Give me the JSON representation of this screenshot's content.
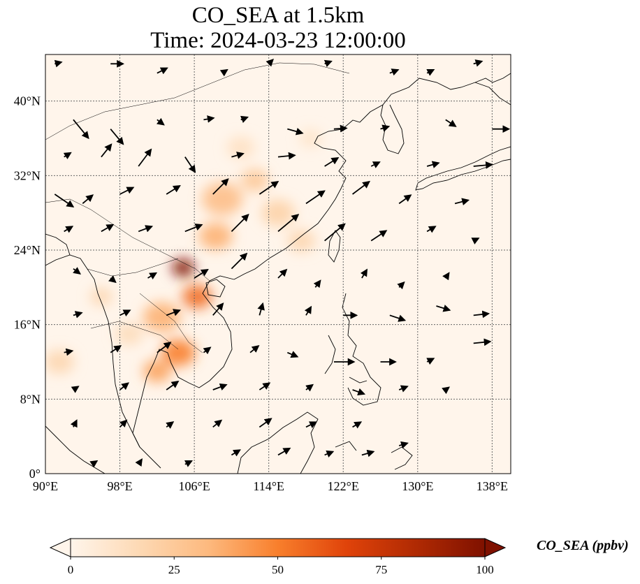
{
  "title": {
    "line1": "CO_SEA at 1.5km",
    "line2": "Time: 2024-03-23 12:00:00"
  },
  "map": {
    "projection": "PlateCarree",
    "lon_range": [
      90,
      140
    ],
    "lat_range": [
      0,
      45
    ],
    "lon_ticks": [
      {
        "value": 90,
        "label": "90°E"
      },
      {
        "value": 98,
        "label": "98°E"
      },
      {
        "value": 106,
        "label": "106°E"
      },
      {
        "value": 114,
        "label": "114°E"
      },
      {
        "value": 122,
        "label": "122°E"
      },
      {
        "value": 130,
        "label": "130°E"
      },
      {
        "value": 138,
        "label": "138°E"
      }
    ],
    "lat_ticks": [
      {
        "value": 0,
        "label": "0°"
      },
      {
        "value": 8,
        "label": "8°N"
      },
      {
        "value": 16,
        "label": "16°N"
      },
      {
        "value": 24,
        "label": "24°N"
      },
      {
        "value": 32,
        "label": "32°N"
      },
      {
        "value": 40,
        "label": "40°N"
      }
    ],
    "gridlines": "dotted",
    "background_color": "#fff5eb",
    "coastline_color": "#000000",
    "plumes": [
      {
        "lon": 104.8,
        "lat": 22.1,
        "r": 1.2,
        "level": 100
      },
      {
        "lon": 106.3,
        "lat": 19.0,
        "r": 1.6,
        "level": 55
      },
      {
        "lon": 104.3,
        "lat": 13.0,
        "r": 1.8,
        "level": 50
      },
      {
        "lon": 102.0,
        "lat": 11.0,
        "r": 1.5,
        "level": 40
      },
      {
        "lon": 102.5,
        "lat": 16.8,
        "r": 2.0,
        "level": 35
      },
      {
        "lon": 108.3,
        "lat": 25.5,
        "r": 1.8,
        "level": 35
      },
      {
        "lon": 109.0,
        "lat": 29.5,
        "r": 2.2,
        "level": 30
      },
      {
        "lon": 112.5,
        "lat": 31.5,
        "r": 1.5,
        "level": 25
      },
      {
        "lon": 115.0,
        "lat": 28.0,
        "r": 1.8,
        "level": 20
      },
      {
        "lon": 117.5,
        "lat": 25.0,
        "r": 1.5,
        "level": 18
      },
      {
        "lon": 96.0,
        "lat": 19.0,
        "r": 1.2,
        "level": 18
      },
      {
        "lon": 91.5,
        "lat": 12.0,
        "r": 1.6,
        "level": 18
      },
      {
        "lon": 99.0,
        "lat": 15.0,
        "r": 1.5,
        "level": 15
      },
      {
        "lon": 111.0,
        "lat": 35.0,
        "r": 1.5,
        "level": 12
      },
      {
        "lon": 118.5,
        "lat": 36.0,
        "r": 1.2,
        "level": 10
      }
    ],
    "wind_vectors": [
      [
        91,
        44,
        0.8,
        0.2
      ],
      [
        97,
        44,
        1.5,
        0
      ],
      [
        102,
        43,
        1.2,
        0.6
      ],
      [
        109,
        43,
        0.6,
        0.4
      ],
      [
        114,
        44,
        0.5,
        0.5
      ],
      [
        120,
        44,
        0.8,
        0.3
      ],
      [
        127,
        43,
        1.0,
        0.4
      ],
      [
        131,
        43,
        0.8,
        0.4
      ],
      [
        136,
        44,
        1.0,
        0.3
      ],
      [
        93,
        38,
        1.8,
        -2.2
      ],
      [
        97,
        37,
        1.5,
        -1.8
      ],
      [
        102,
        38,
        0.8,
        -0.6
      ],
      [
        107,
        38,
        1.2,
        0.2
      ],
      [
        111,
        38,
        0.8,
        0.3
      ],
      [
        116,
        37,
        1.8,
        -0.5
      ],
      [
        121,
        37,
        1.5,
        0.1
      ],
      [
        126,
        37,
        1.0,
        0.3
      ],
      [
        133,
        38,
        1.2,
        -0.8
      ],
      [
        138,
        37,
        2.0,
        0
      ],
      [
        92,
        34,
        0.8,
        0.5
      ],
      [
        96,
        34,
        1.2,
        1.5
      ],
      [
        100,
        33,
        1.5,
        2.0
      ],
      [
        105,
        34,
        1.2,
        -1.8
      ],
      [
        110,
        34,
        1.4,
        0.4
      ],
      [
        115,
        34,
        2.0,
        0.2
      ],
      [
        120,
        33,
        1.6,
        1.0
      ],
      [
        125,
        33,
        1.0,
        0.5
      ],
      [
        131,
        33,
        1.4,
        0.4
      ],
      [
        136,
        33,
        2.2,
        0.2
      ],
      [
        91,
        30,
        2.2,
        -1.5
      ],
      [
        94,
        29,
        1.2,
        1.0
      ],
      [
        98,
        30,
        1.6,
        0.8
      ],
      [
        103,
        30,
        1.6,
        1.0
      ],
      [
        108,
        30,
        1.8,
        1.8
      ],
      [
        113,
        30,
        2.2,
        1.5
      ],
      [
        118,
        29,
        2.2,
        1.5
      ],
      [
        123,
        30,
        2.0,
        1.5
      ],
      [
        128,
        29,
        1.4,
        1.0
      ],
      [
        134,
        29,
        1.6,
        0.4
      ],
      [
        92,
        26,
        1.0,
        0.6
      ],
      [
        96,
        26,
        1.4,
        0.8
      ],
      [
        100,
        26,
        1.6,
        0.6
      ],
      [
        105,
        26,
        2.0,
        0.8
      ],
      [
        110,
        26,
        2.0,
        2.0
      ],
      [
        115,
        26,
        2.4,
        2.0
      ],
      [
        120,
        25,
        2.4,
        2.0
      ],
      [
        125,
        25,
        1.8,
        1.2
      ],
      [
        131,
        26,
        1.0,
        0.6
      ],
      [
        136,
        25,
        0.6,
        0.3
      ],
      [
        93,
        22,
        0.8,
        -0.6
      ],
      [
        97,
        21,
        0.6,
        -0.5
      ],
      [
        101,
        21,
        1.0,
        0.6
      ],
      [
        106,
        21,
        1.6,
        1.0
      ],
      [
        110,
        22,
        1.8,
        1.8
      ],
      [
        115,
        21,
        1.0,
        1.0
      ],
      [
        119,
        20,
        0.6,
        0.8
      ],
      [
        124,
        21,
        0.6,
        1.0
      ],
      [
        128,
        20,
        0.6,
        0.6
      ],
      [
        133,
        21,
        0.4,
        0.6
      ],
      [
        93,
        17,
        1.0,
        0.3
      ],
      [
        98,
        17,
        1.2,
        0.6
      ],
      [
        103,
        17,
        1.6,
        0.6
      ],
      [
        108,
        17,
        1.2,
        1.4
      ],
      [
        113,
        17,
        0.4,
        1.4
      ],
      [
        118,
        17,
        0.6,
        1.0
      ],
      [
        122,
        17,
        1.6,
        0
      ],
      [
        127,
        17,
        1.8,
        -0.6
      ],
      [
        132,
        18,
        1.6,
        -0.5
      ],
      [
        136,
        17,
        1.8,
        0.2
      ],
      [
        92,
        13,
        1.0,
        0.2
      ],
      [
        97,
        13,
        1.2,
        0.8
      ],
      [
        102,
        13,
        1.6,
        1.2
      ],
      [
        107,
        13,
        0.8,
        0.6
      ],
      [
        112,
        13,
        1.0,
        0.8
      ],
      [
        116,
        13,
        1.2,
        -0.5
      ],
      [
        121,
        12,
        2.4,
        0
      ],
      [
        126,
        12,
        1.8,
        0
      ],
      [
        131,
        12,
        0.8,
        0.4
      ],
      [
        136,
        14,
        2.0,
        0.2
      ],
      [
        93,
        9,
        0.6,
        0.4
      ],
      [
        98,
        9,
        1.0,
        0.8
      ],
      [
        103,
        9,
        1.4,
        1.0
      ],
      [
        108,
        9,
        1.6,
        0.6
      ],
      [
        113,
        9,
        1.2,
        0.8
      ],
      [
        118,
        9,
        0.8,
        0.6
      ],
      [
        123,
        9,
        1.4,
        -0.5
      ],
      [
        128,
        9,
        1.0,
        0.4
      ],
      [
        133,
        9,
        0.4,
        0.3
      ],
      [
        93,
        5,
        0.4,
        0.8
      ],
      [
        98,
        5,
        0.8,
        0.8
      ],
      [
        103,
        5,
        0.8,
        0.6
      ],
      [
        108,
        5,
        1.0,
        0.8
      ],
      [
        113,
        5,
        1.4,
        1.0
      ],
      [
        118,
        5,
        1.2,
        0.6
      ],
      [
        123,
        5,
        1.0,
        0.6
      ],
      [
        128,
        3,
        1.0,
        0.3
      ],
      [
        95,
        1,
        0.6,
        0.4
      ],
      [
        100,
        1,
        0.4,
        0.6
      ],
      [
        105,
        1,
        0.8,
        0.4
      ],
      [
        110,
        2,
        1.0,
        0.6
      ],
      [
        115,
        2,
        1.4,
        0.8
      ],
      [
        120,
        2,
        1.0,
        0.4
      ],
      [
        124,
        2,
        1.4,
        0.4
      ]
    ]
  },
  "colorbar": {
    "label": "CO_SEA (ppbv)",
    "colormap": "OrRd",
    "range": [
      0,
      100
    ],
    "extend": "both",
    "colors": [
      "#fff5eb",
      "#fdd9b4",
      "#fdb97e",
      "#f87f2c",
      "#e0430a",
      "#b02a03",
      "#7f1100"
    ],
    "ticks": [
      {
        "value": 0,
        "label": "0"
      },
      {
        "value": 25,
        "label": "25"
      },
      {
        "value": 50,
        "label": "50"
      },
      {
        "value": 75,
        "label": "75"
      },
      {
        "value": 100,
        "label": "100"
      }
    ]
  }
}
